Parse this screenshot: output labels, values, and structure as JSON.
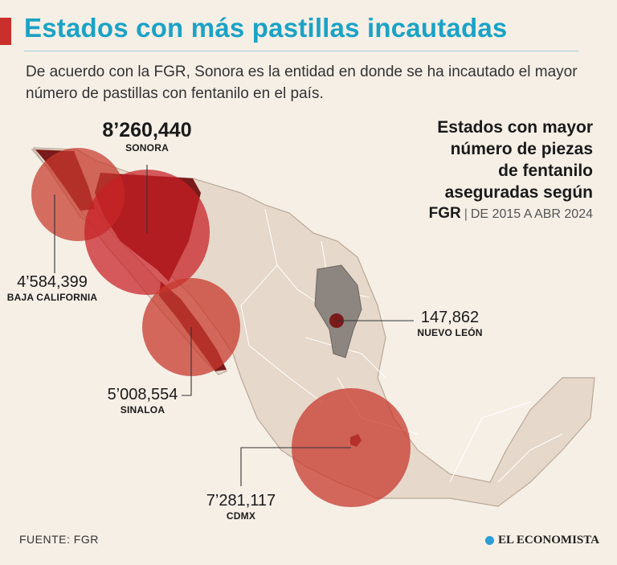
{
  "header": {
    "title": "Estados con más pastillas incautadas",
    "subtitle": "De acuerdo con la FGR, Sonora es la entidad en donde se ha incautado el mayor número de pastillas con fentanilo en el país."
  },
  "legend": {
    "title_lines": [
      "Estados con mayor",
      "número de piezas",
      "de fentanilo",
      "aseguradas según"
    ],
    "source_bold": "FGR",
    "separator": "|",
    "period": "DE 2015 A ABR 2024"
  },
  "states": {
    "sonora": {
      "value": "8’260,440",
      "name": "SONORA"
    },
    "baja_california": {
      "value": "4’584,399",
      "name": "BAJA CALIFORNIA"
    },
    "sinaloa": {
      "value": "5’008,554",
      "name": "SINALOA"
    },
    "nuevo_leon": {
      "value": "147,862",
      "name": "NUEVO LEÓN"
    },
    "cdmx": {
      "value": "7’281,117",
      "name": "CDMX"
    }
  },
  "footer": {
    "source": "FUENTE: FGR",
    "brand": "EL ECONOMISTA"
  },
  "colors": {
    "title": "#1ba3c6",
    "accent": "#c9302c",
    "land": "#e6d8ca",
    "highlight": "#7a1a1a"
  }
}
